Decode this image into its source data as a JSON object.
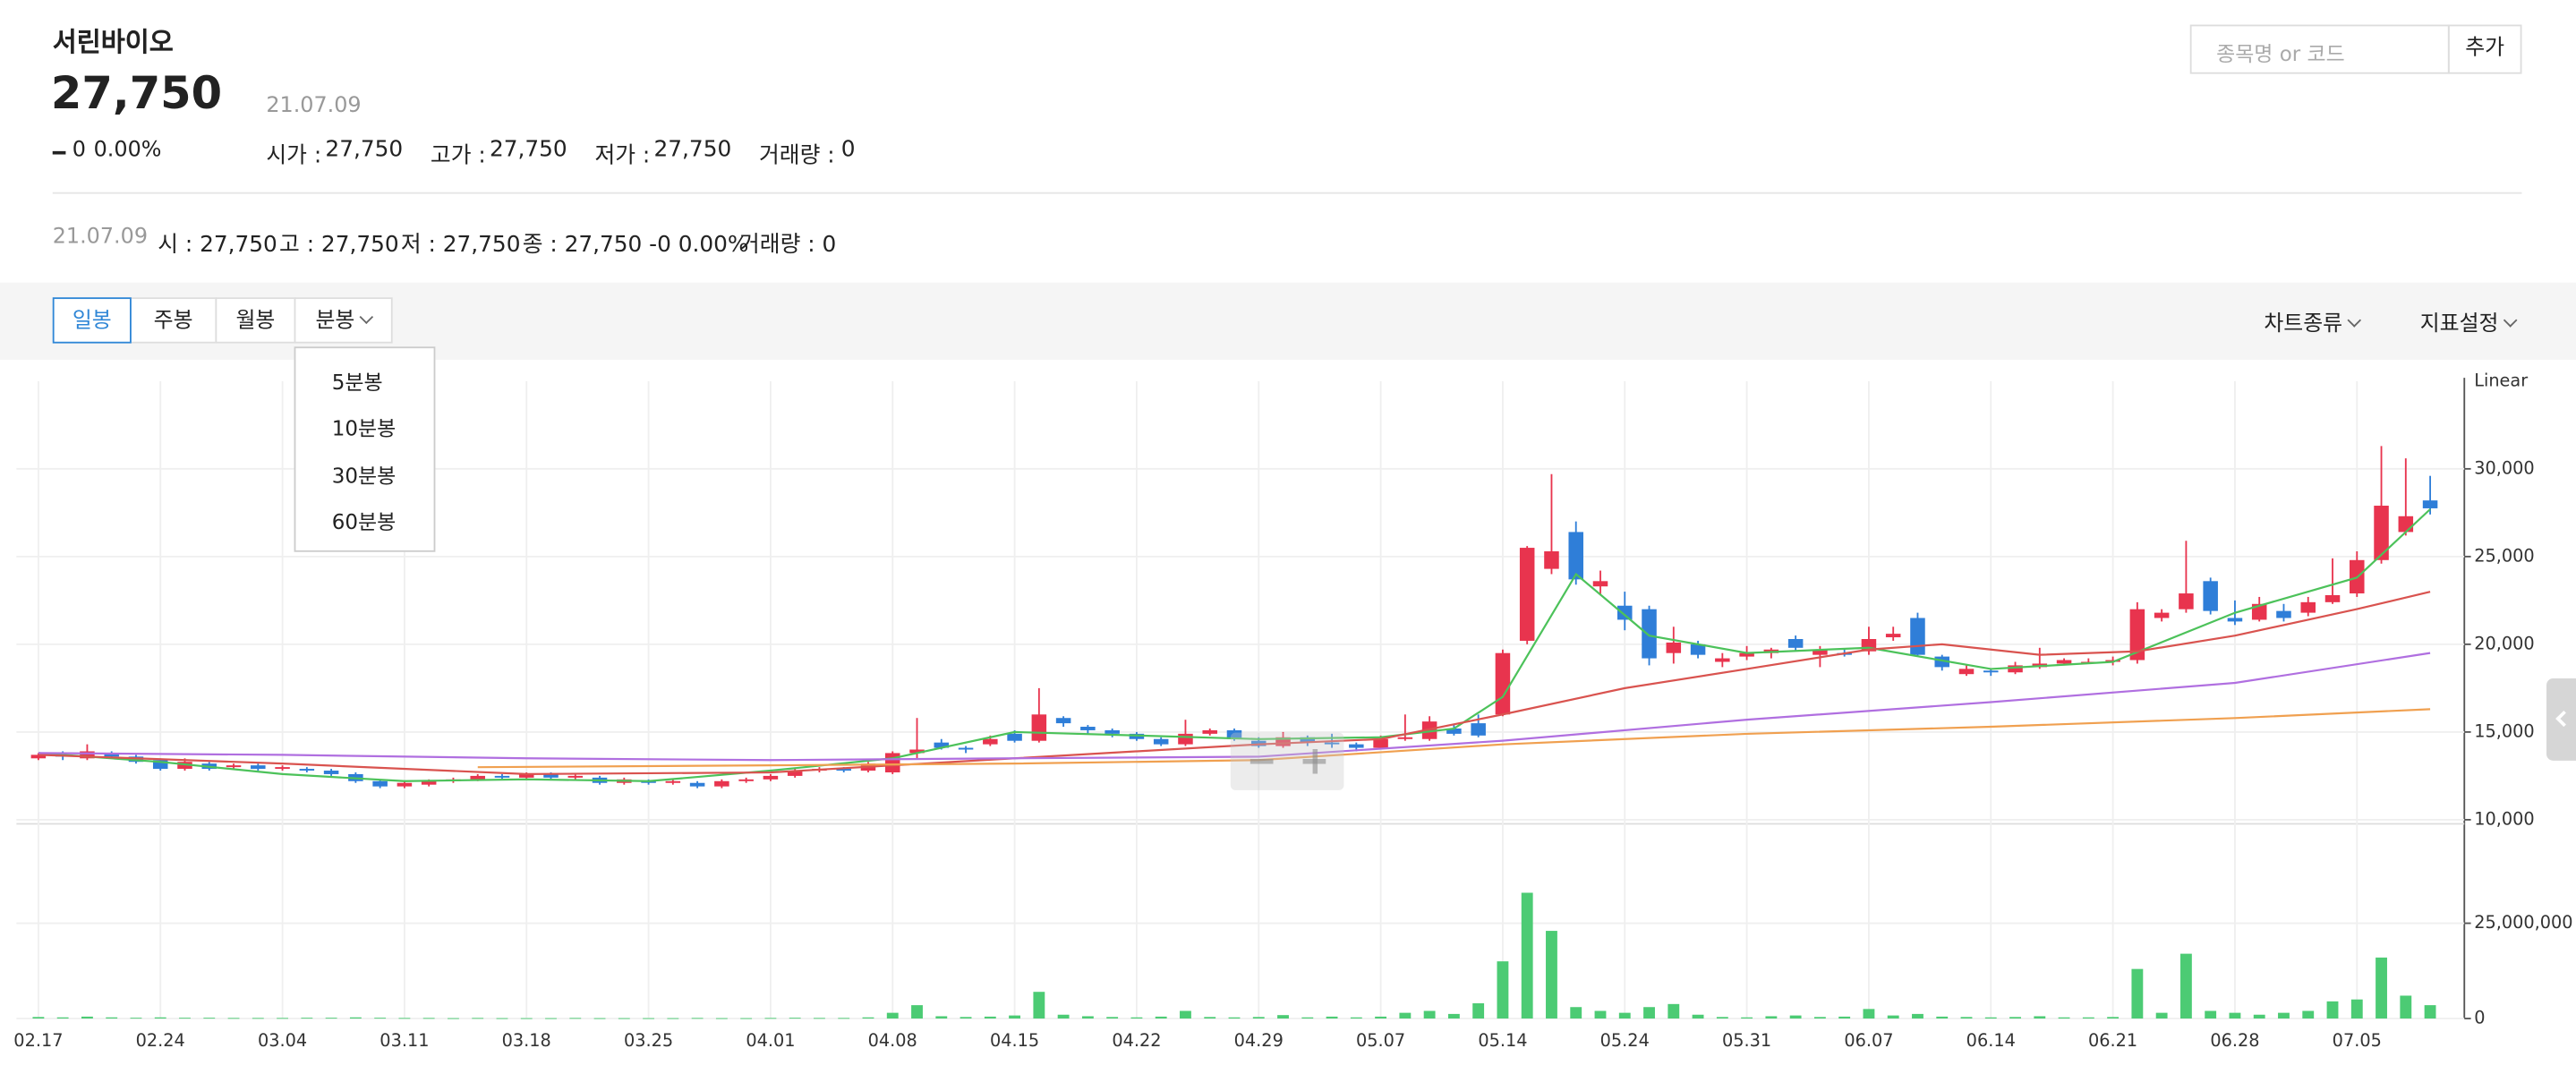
{
  "header": {
    "name": "서린바이오",
    "price": "27,750",
    "change": "0",
    "change_rate": "0.00%",
    "date": "21.07.09",
    "stats": [
      {
        "label": "시가 :",
        "value": "27,750"
      },
      {
        "label": "고가 :",
        "value": "27,750"
      },
      {
        "label": "저가 :",
        "value": "27,750"
      },
      {
        "label": "거래량 :",
        "value": "0"
      }
    ]
  },
  "summary": {
    "date": "21.07.09",
    "items": [
      "시 : 27,750",
      "고 : 27,750",
      "저 : 27,750",
      "종 : 27,750 -0 0.00%",
      "거래량 : 0"
    ]
  },
  "search": {
    "placeholder": "종목명 or 코드",
    "button": "추가"
  },
  "toolbar": {
    "tabs": [
      "일봉",
      "주봉",
      "월봉",
      "분봉"
    ],
    "selected": 0,
    "minute_options": [
      "5분봉",
      "10분봉",
      "30분봉",
      "60분봉"
    ],
    "menus": [
      "차트종류",
      "지표설정"
    ]
  },
  "chart_data": [
    {
      "type": "candlestick",
      "scale_label": "Linear",
      "up_color": "#e8344e",
      "down_color": "#2f7ed8",
      "grid": true,
      "categories": [
        "02.17",
        null,
        null,
        null,
        null,
        "02.24",
        null,
        null,
        null,
        null,
        "03.04",
        null,
        null,
        null,
        null,
        "03.11",
        null,
        null,
        null,
        null,
        "03.18",
        null,
        null,
        null,
        null,
        "03.25",
        null,
        null,
        null,
        null,
        "04.01",
        null,
        null,
        null,
        null,
        "04.08",
        null,
        null,
        null,
        null,
        "04.15",
        null,
        null,
        null,
        null,
        "04.22",
        null,
        null,
        null,
        null,
        "04.29",
        null,
        null,
        null,
        null,
        "05.07",
        null,
        null,
        null,
        null,
        "05.14",
        null,
        null,
        null,
        null,
        "05.24",
        null,
        null,
        null,
        null,
        "05.31",
        null,
        null,
        null,
        null,
        "06.07",
        null,
        null,
        null,
        null,
        "06.14",
        null,
        null,
        null,
        null,
        "06.21",
        null,
        null,
        null,
        null,
        "06.28",
        null,
        null,
        null,
        null,
        "07.05",
        null,
        null,
        null
      ],
      "open": [
        13500,
        13700,
        13500,
        13800,
        13600,
        13400,
        12900,
        13200,
        13000,
        13100,
        12900,
        12900,
        12800,
        12600,
        12200,
        11900,
        12000,
        12200,
        12300,
        12500,
        12400,
        12600,
        12400,
        12400,
        12100,
        12200,
        12100,
        12100,
        11900,
        12200,
        12300,
        12500,
        12800,
        12900,
        12800,
        12700,
        13800,
        14400,
        14100,
        14300,
        14900,
        14500,
        15800,
        15300,
        15100,
        14900,
        14600,
        14300,
        14900,
        15100,
        14500,
        14200,
        14700,
        14400,
        14300,
        14100,
        14600,
        14600,
        15200,
        15500,
        16000,
        20200,
        24300,
        26400,
        23300,
        22200,
        22000,
        19500,
        20000,
        19000,
        19300,
        19500,
        20300,
        19400,
        19500,
        19600,
        20400,
        21500,
        19300,
        18300,
        18500,
        18400,
        18700,
        18900,
        19000,
        19000,
        19100,
        21500,
        22000,
        23600,
        21500,
        21400,
        21900,
        21800,
        22400,
        22900,
        24800,
        26400,
        28200
      ],
      "high": [
        13800,
        13900,
        14300,
        13900,
        13700,
        13500,
        13500,
        13300,
        13200,
        13200,
        13100,
        13000,
        12900,
        12700,
        12300,
        12200,
        12300,
        12400,
        12600,
        12600,
        12700,
        12700,
        12600,
        12500,
        12400,
        12300,
        12300,
        12200,
        12300,
        12400,
        12600,
        12900,
        13000,
        13000,
        13300,
        13900,
        15800,
        14600,
        14200,
        14800,
        15100,
        17500,
        15900,
        15400,
        15200,
        15000,
        14700,
        15700,
        15200,
        15200,
        14700,
        15000,
        14800,
        14900,
        14400,
        14800,
        16000,
        15900,
        15400,
        16000,
        19700,
        25600,
        29700,
        27000,
        24200,
        23000,
        22200,
        21000,
        20200,
        19500,
        19900,
        19800,
        20500,
        19900,
        19700,
        21000,
        21000,
        21800,
        19400,
        18800,
        18600,
        19000,
        19800,
        19200,
        19200,
        19300,
        22400,
        22000,
        25900,
        23800,
        22500,
        22700,
        22300,
        22700,
        24900,
        25300,
        31300,
        30600,
        29600
      ],
      "low": [
        13400,
        13400,
        13400,
        13500,
        13200,
        12800,
        12800,
        12800,
        12900,
        12800,
        12800,
        12700,
        12500,
        12100,
        11800,
        11800,
        11900,
        12100,
        12200,
        12300,
        12300,
        12300,
        12300,
        12000,
        12000,
        12000,
        12000,
        11800,
        11800,
        12100,
        12200,
        12400,
        12700,
        12700,
        12700,
        12600,
        13500,
        14000,
        13800,
        14200,
        14400,
        14400,
        15300,
        14900,
        14700,
        14500,
        14200,
        14200,
        14800,
        14500,
        14100,
        14100,
        14200,
        14100,
        13900,
        14000,
        14500,
        14500,
        14800,
        14700,
        15900,
        20000,
        24000,
        23400,
        22800,
        20800,
        18800,
        18900,
        19200,
        18700,
        19100,
        19200,
        19600,
        18700,
        19300,
        19400,
        20200,
        19300,
        18500,
        18200,
        18200,
        18300,
        18600,
        18800,
        18900,
        18800,
        18900,
        21300,
        21800,
        21700,
        21100,
        21300,
        21300,
        21600,
        22300,
        22700,
        24600,
        26200,
        27400
      ],
      "close": [
        13700,
        13600,
        13900,
        13600,
        13300,
        12900,
        13300,
        12900,
        13100,
        12900,
        13000,
        12800,
        12600,
        12200,
        11900,
        12100,
        12200,
        12300,
        12500,
        12400,
        12600,
        12400,
        12500,
        12100,
        12300,
        12100,
        12200,
        11900,
        12200,
        12300,
        12500,
        12800,
        12900,
        12800,
        13200,
        13800,
        14000,
        14100,
        14000,
        14600,
        14500,
        16000,
        15500,
        15100,
        14900,
        14600,
        14300,
        14900,
        15100,
        14600,
        14200,
        14700,
        14400,
        14300,
        14100,
        14600,
        14700,
        15600,
        14900,
        14800,
        19500,
        25500,
        25300,
        23700,
        23600,
        21400,
        19200,
        20100,
        19400,
        19200,
        19500,
        19700,
        19800,
        19700,
        19400,
        20300,
        20600,
        19400,
        18700,
        18600,
        18400,
        18800,
        18900,
        19100,
        19000,
        19100,
        22000,
        21800,
        22900,
        21900,
        21300,
        22300,
        21500,
        22400,
        22800,
        24800,
        27900,
        27300,
        27750
      ],
      "xlim": [
        -0.9,
        99.4
      ],
      "ylim": [
        10000,
        35000
      ],
      "yticks": [
        {
          "value": 10000,
          "label": "10,000"
        },
        {
          "value": 15000,
          "label": "15,000"
        },
        {
          "value": 20000,
          "label": "20,000"
        },
        {
          "value": 25000,
          "label": "25,000"
        },
        {
          "value": 30000,
          "label": "30,000"
        }
      ],
      "series": [
        {
          "color": "#4cc25a",
          "x": [
            0,
            5,
            10,
            15,
            20,
            25,
            30,
            35,
            40,
            45,
            50,
            55,
            58,
            60,
            63,
            66,
            70,
            75,
            80,
            85,
            90,
            95,
            98
          ],
          "values": [
            13800,
            13300,
            12600,
            12200,
            12300,
            12200,
            12800,
            13500,
            15000,
            14800,
            14600,
            14700,
            15200,
            17000,
            24000,
            20500,
            19500,
            19800,
            18600,
            19000,
            21800,
            23800,
            27700
          ]
        },
        {
          "color": "#d9534f",
          "x": [
            0,
            10,
            20,
            30,
            40,
            50,
            55,
            60,
            65,
            70,
            75,
            78,
            82,
            86,
            90,
            95,
            98
          ],
          "values": [
            13700,
            13200,
            12600,
            12700,
            13500,
            14300,
            14600,
            16000,
            17500,
            18600,
            19700,
            20000,
            19400,
            19600,
            20500,
            22000,
            23000
          ]
        },
        {
          "color": "#b06fe0",
          "x": [
            0,
            10,
            20,
            30,
            40,
            50,
            60,
            70,
            80,
            90,
            98
          ],
          "values": [
            13800,
            13700,
            13500,
            13400,
            13500,
            13600,
            14500,
            15700,
            16700,
            17800,
            19500
          ]
        },
        {
          "color": "#f0a050",
          "x": [
            18,
            30,
            40,
            50,
            60,
            70,
            80,
            90,
            98
          ],
          "values": [
            13000,
            13100,
            13200,
            13400,
            14300,
            14900,
            15300,
            15800,
            16300
          ]
        }
      ]
    },
    {
      "type": "bar",
      "color": "#4ccb74",
      "grid": true,
      "values": [
        400000,
        300000,
        500000,
        300000,
        200000,
        300000,
        200000,
        200000,
        150000,
        150000,
        150000,
        200000,
        200000,
        300000,
        200000,
        150000,
        150000,
        100000,
        150000,
        100000,
        100000,
        100000,
        150000,
        100000,
        100000,
        100000,
        100000,
        150000,
        100000,
        100000,
        150000,
        200000,
        150000,
        150000,
        300000,
        1500000,
        3500000,
        600000,
        400000,
        500000,
        800000,
        7000000,
        1000000,
        600000,
        400000,
        300000,
        500000,
        2000000,
        400000,
        300000,
        400000,
        900000,
        300000,
        500000,
        300000,
        500000,
        1500000,
        2000000,
        1200000,
        4000000,
        15000000,
        33000000,
        23000000,
        3000000,
        2000000,
        1500000,
        3000000,
        3800000,
        1000000,
        400000,
        300000,
        600000,
        800000,
        400000,
        500000,
        2500000,
        800000,
        1200000,
        500000,
        400000,
        300000,
        400000,
        600000,
        300000,
        300000,
        400000,
        13000000,
        1500000,
        17000000,
        2000000,
        1500000,
        1000000,
        1500000,
        2000000,
        4500000,
        5000000,
        16000000,
        6000000,
        3500000
      ],
      "ylim": [
        0,
        50000000
      ],
      "yticks": [
        0,
        {
          "value": 25000000,
          "label": "25,000,000"
        }
      ]
    }
  ]
}
